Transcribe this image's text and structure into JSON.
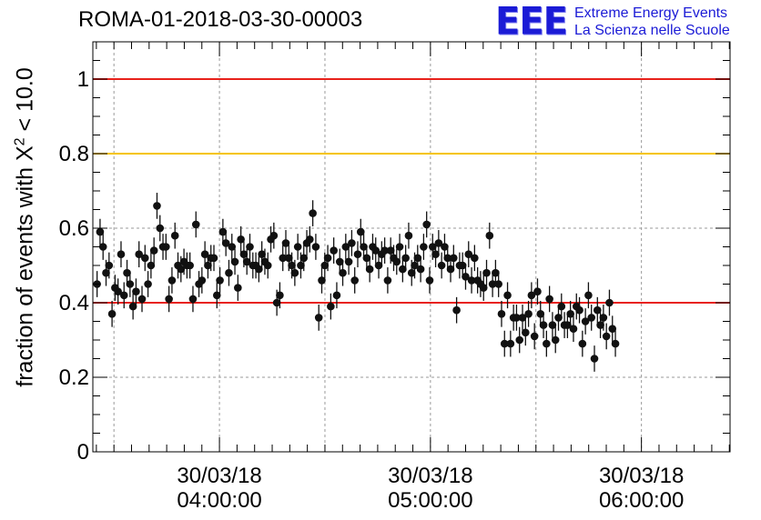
{
  "header": {
    "run_title": "ROMA-01-2018-03-30-00003",
    "logo_mark": "EEE",
    "logo_line1": "Extreme Energy Events",
    "logo_line2": "La Scienza nelle Scuole"
  },
  "chart_data": {
    "type": "scatter",
    "title": "ROMA-01-2018-03-30-00003",
    "ylabel_prefix": "fraction of events with X",
    "ylabel_sup": "2",
    "ylabel_suffix": " < 10.0",
    "ylim": [
      0,
      1.1
    ],
    "y_ticks": [
      0,
      0.2,
      0.4,
      0.6,
      0.8,
      1
    ],
    "y_tick_labels": [
      "0",
      "0.2",
      "0.4",
      "0.6",
      "0.8",
      "1"
    ],
    "xlim_hours": [
      3.4,
      6.42
    ],
    "x_ticks": [
      {
        "hour": 4,
        "date": "30/03/18",
        "time": "04:00:00"
      },
      {
        "hour": 5,
        "date": "30/03/18",
        "time": "05:00:00"
      },
      {
        "hour": 6,
        "date": "30/03/18",
        "time": "06:00:00"
      }
    ],
    "grid": true,
    "reference_lines": [
      {
        "y": 1.0,
        "color": "#e8211b"
      },
      {
        "y": 0.8,
        "color": "#f5c400"
      },
      {
        "y": 0.4,
        "color": "#e8211b"
      }
    ],
    "marker_color": "#111111",
    "error_bar": 0.035,
    "x_start_hour": 3.42,
    "x_step_hour": 0.0142,
    "values": [
      0.45,
      0.59,
      0.55,
      0.48,
      0.5,
      0.37,
      0.44,
      0.43,
      0.53,
      0.42,
      0.48,
      0.45,
      0.39,
      0.43,
      0.53,
      0.41,
      0.52,
      0.45,
      0.5,
      0.54,
      0.66,
      0.6,
      0.55,
      0.55,
      0.41,
      0.46,
      0.58,
      0.5,
      0.49,
      0.51,
      0.5,
      0.5,
      0.41,
      0.61,
      0.45,
      0.46,
      0.53,
      0.5,
      0.52,
      0.52,
      0.42,
      0.46,
      0.59,
      0.56,
      0.48,
      0.55,
      0.51,
      0.44,
      0.57,
      0.53,
      0.51,
      0.55,
      0.5,
      0.5,
      0.49,
      0.53,
      0.51,
      0.5,
      0.57,
      0.58,
      0.4,
      0.42,
      0.52,
      0.56,
      0.52,
      0.5,
      0.48,
      0.55,
      0.5,
      0.52,
      0.56,
      0.57,
      0.64,
      0.55,
      0.36,
      0.46,
      0.5,
      0.52,
      0.39,
      0.54,
      0.42,
      0.51,
      0.48,
      0.55,
      0.51,
      0.56,
      0.46,
      0.53,
      0.59,
      0.55,
      0.52,
      0.49,
      0.55,
      0.54,
      0.5,
      0.53,
      0.54,
      0.46,
      0.54,
      0.52,
      0.51,
      0.55,
      0.49,
      0.52,
      0.58,
      0.48,
      0.5,
      0.52,
      0.49,
      0.55,
      0.61,
      0.46,
      0.55,
      0.53,
      0.56,
      0.5,
      0.55,
      0.52,
      0.49,
      0.52,
      0.38,
      0.5,
      0.5,
      0.47,
      0.53,
      0.46,
      0.52,
      0.46,
      0.45,
      0.44,
      0.48,
      0.58,
      0.45,
      0.48,
      0.45,
      0.37,
      0.29,
      0.42,
      0.29,
      0.36,
      0.36,
      0.3,
      0.36,
      0.32,
      0.37,
      0.42,
      0.31,
      0.43,
      0.37,
      0.34,
      0.29,
      0.41,
      0.34,
      0.3,
      0.36,
      0.39,
      0.34,
      0.34,
      0.37,
      0.33,
      0.39,
      0.38,
      0.29,
      0.35,
      0.42,
      0.36,
      0.25,
      0.38,
      0.34,
      0.36,
      0.31,
      0.4,
      0.33,
      0.29
    ]
  }
}
